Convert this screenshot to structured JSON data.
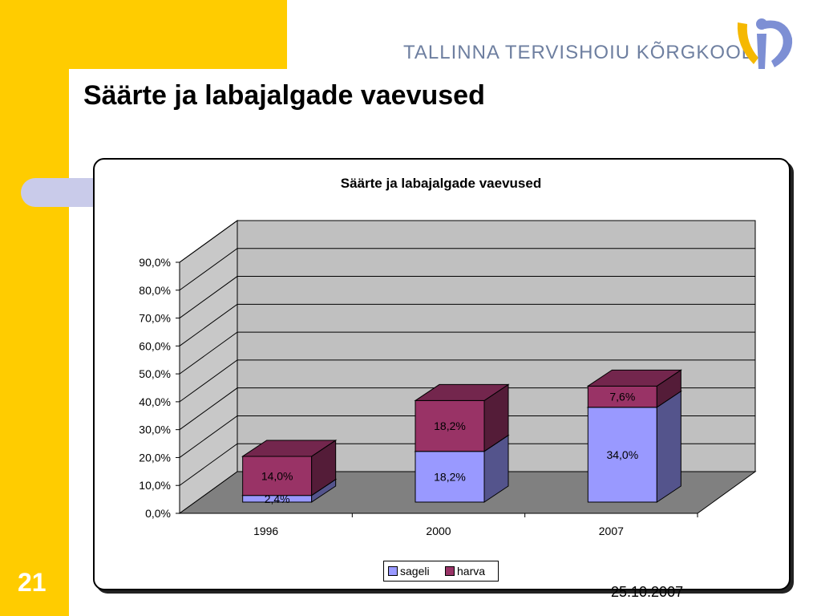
{
  "slide": {
    "title": "Säärte ja labajalgade vaevused",
    "number": "21",
    "date": "25.10.2007"
  },
  "logo": {
    "text": "TALLINNA TERVISHOIU KÕRGKOOL",
    "colors": {
      "gold": "#F5B800",
      "blue": "#7D8FD4"
    }
  },
  "theme": {
    "accent_gold": "#FFCC00",
    "pill": "#C9CBEA"
  },
  "chart_data": {
    "type": "bar",
    "stacked": true,
    "style": "3d",
    "title": "Säärte ja labajalgade vaevused",
    "categories": [
      "1996",
      "2000",
      "2007"
    ],
    "series": [
      {
        "name": "sageli",
        "values": [
          2.4,
          18.2,
          34.0
        ],
        "labels": [
          "2,4%",
          "18,2%",
          "34,0%"
        ],
        "color": "#9999FF"
      },
      {
        "name": "harva",
        "values": [
          14.0,
          18.2,
          7.6
        ],
        "labels": [
          "14,0%",
          "18,2%",
          "7,6%"
        ],
        "color": "#993366"
      }
    ],
    "ylim": [
      0,
      90
    ],
    "yticks": [
      0,
      10,
      20,
      30,
      40,
      50,
      60,
      70,
      80,
      90
    ],
    "ytick_labels": [
      "0,0%",
      "10,0%",
      "20,0%",
      "30,0%",
      "40,0%",
      "50,0%",
      "60,0%",
      "70,0%",
      "80,0%",
      "90,0%"
    ],
    "grid": true,
    "legend": "bottom"
  }
}
